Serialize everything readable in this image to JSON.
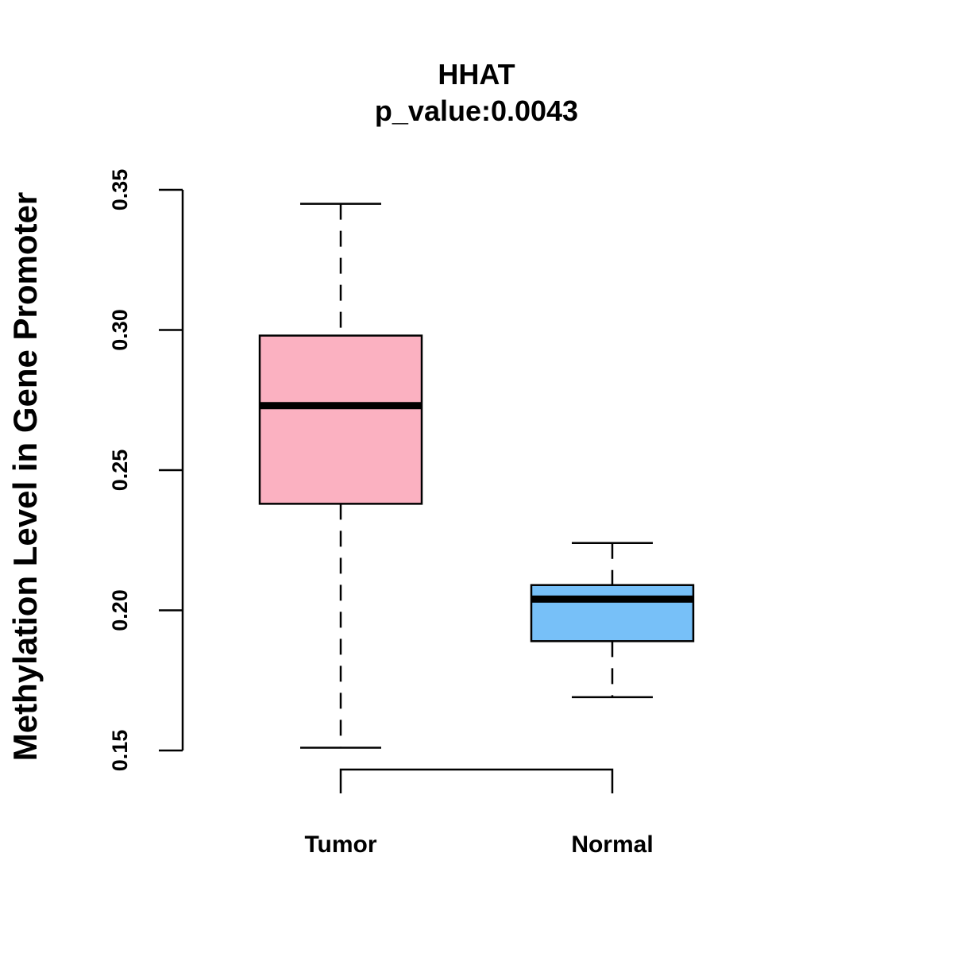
{
  "chart_data": {
    "type": "boxplot",
    "title": "HHAT",
    "subtitle": "p_value:0.0043",
    "xlabel": "",
    "ylabel": "Methylation Level in Gene Promoter",
    "ylim": [
      0.15,
      0.35
    ],
    "yticks": [
      0.15,
      0.2,
      0.25,
      0.3,
      0.35
    ],
    "ytick_labels": [
      "0.15",
      "0.20",
      "0.25",
      "0.30",
      "0.35"
    ],
    "categories": [
      "Tumor",
      "Normal"
    ],
    "boxes": [
      {
        "name": "Tumor",
        "whisker_low": 0.151,
        "q1": 0.238,
        "median": 0.273,
        "q3": 0.298,
        "whisker_high": 0.345,
        "color": "#FBB1C1"
      },
      {
        "name": "Normal",
        "whisker_low": 0.169,
        "q1": 0.189,
        "median": 0.204,
        "q3": 0.209,
        "whisker_high": 0.224,
        "color": "#77C0F8"
      }
    ],
    "comparison_bracket": {
      "from": "Tumor",
      "to": "Normal",
      "label": ""
    },
    "grid": false,
    "legend": "none"
  }
}
